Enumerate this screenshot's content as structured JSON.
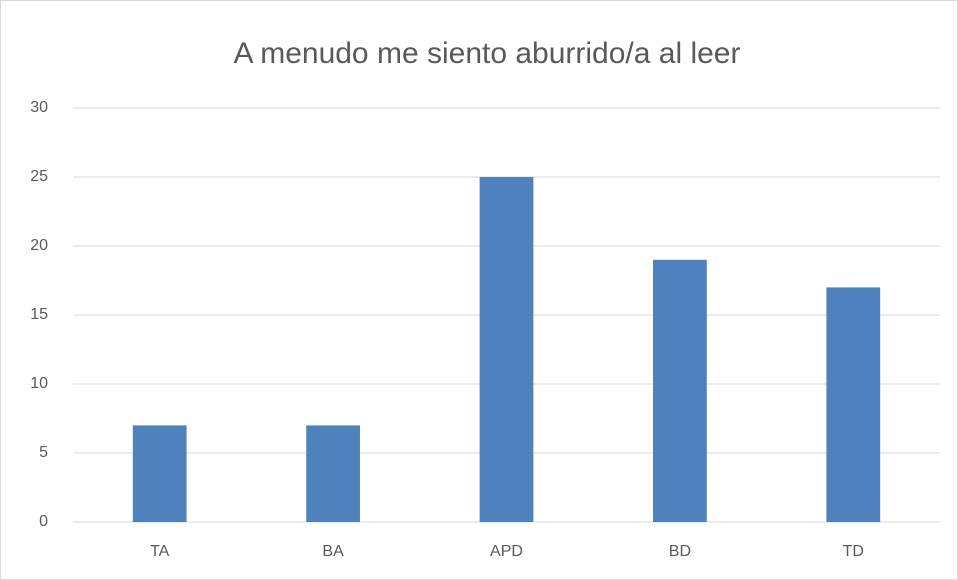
{
  "chart_data": {
    "type": "bar",
    "title": "A menudo me siento aburrido/a al leer",
    "categories": [
      "TA",
      "BA",
      "APD",
      "BD",
      "TD"
    ],
    "values": [
      7,
      7,
      25,
      19,
      17
    ],
    "color": "#4f81bd",
    "ylim": [
      0,
      30
    ],
    "yticks": [
      0,
      5,
      10,
      15,
      20,
      25,
      30
    ],
    "grid": true
  }
}
